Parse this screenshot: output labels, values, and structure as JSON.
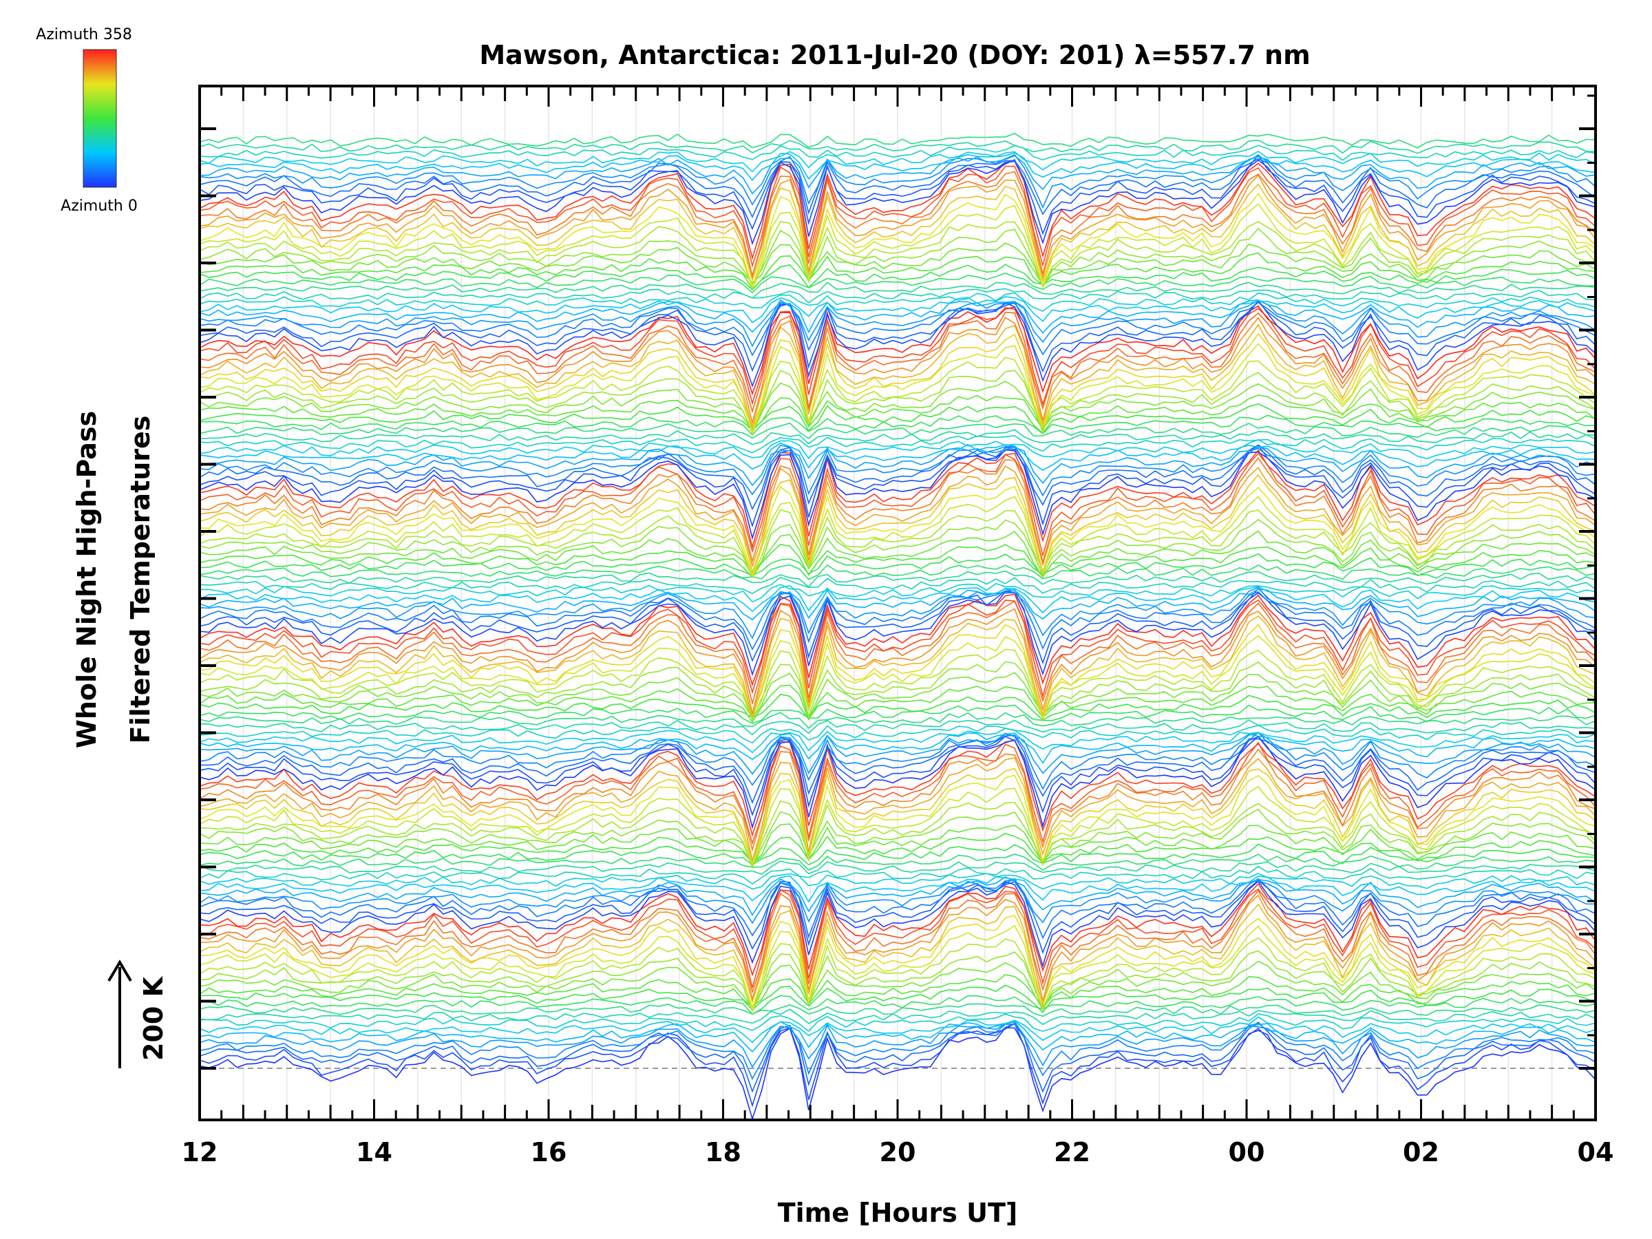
{
  "chart_data": {
    "type": "line",
    "title": "Mawson, Antarctica: 2011-Jul-20 (DOY: 201) λ=557.7 nm",
    "xlabel": "Time [Hours UT]",
    "ylabel_line1": "Whole Night High-Pass",
    "ylabel_line2": "Filtered Temperatures",
    "scale_bar_label": "200 K",
    "x_ticks": [
      "12",
      "14",
      "16",
      "18",
      "20",
      "22",
      "00",
      "02",
      "04"
    ],
    "xlim_hours": [
      12,
      28
    ],
    "colorbar": {
      "top_label": "Azimuth 358",
      "bottom_label": "Azimuth 0",
      "min": 0,
      "max": 358,
      "colormap": "rainbow"
    },
    "num_traces": 145,
    "grid": true,
    "baseline_dashed": true,
    "background": "#ffffff",
    "axis_color": "#000000"
  }
}
